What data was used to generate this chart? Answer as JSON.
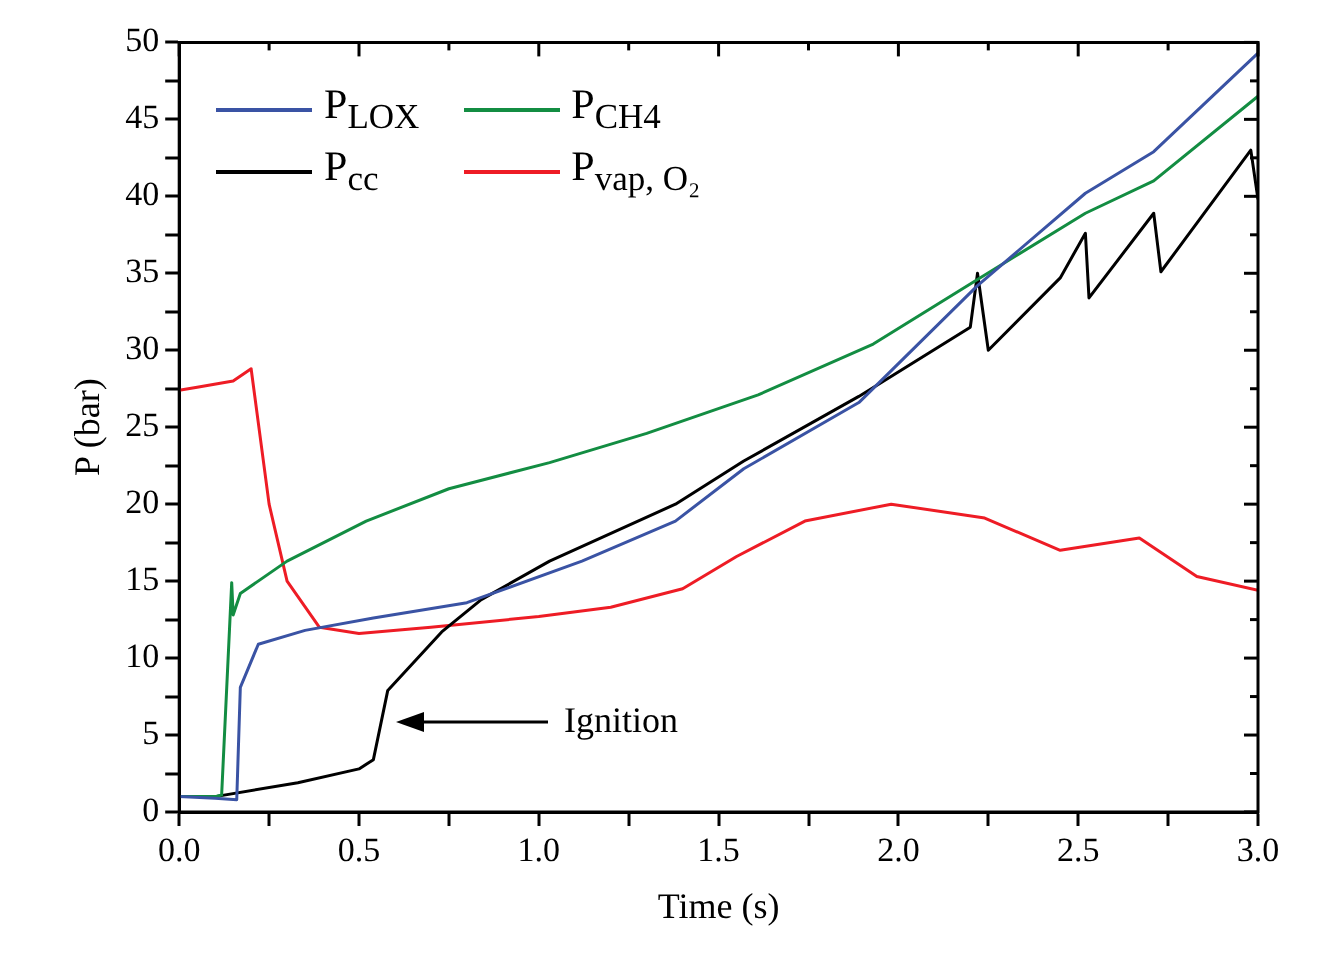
{
  "chart_data": {
    "type": "line",
    "xlabel": "Time (s)",
    "ylabel": "P (bar)",
    "xlim": [
      0,
      3
    ],
    "ylim": [
      0,
      50
    ],
    "xticks": [
      {
        "value": 0,
        "label": "0.0"
      },
      {
        "value": 0.25,
        "label": null
      },
      {
        "value": 0.5,
        "label": "0.5"
      },
      {
        "value": 0.75,
        "label": null
      },
      {
        "value": 1,
        "label": "1.0"
      },
      {
        "value": 1.25,
        "label": null
      },
      {
        "value": 1.5,
        "label": "1.5"
      },
      {
        "value": 1.75,
        "label": null
      },
      {
        "value": 2,
        "label": "2.0"
      },
      {
        "value": 2.25,
        "label": null
      },
      {
        "value": 2.5,
        "label": "2.5"
      },
      {
        "value": 2.75,
        "label": null
      },
      {
        "value": 3,
        "label": "3.0"
      }
    ],
    "yticks": [
      0,
      {
        "value": 2.5,
        "label": null
      },
      5,
      {
        "value": 7.5,
        "label": null
      },
      10,
      {
        "value": 12.5,
        "label": null
      },
      15,
      {
        "value": 17.5,
        "label": null
      },
      20,
      {
        "value": 22.5,
        "label": null
      },
      25,
      {
        "value": 27.5,
        "label": null
      },
      30,
      {
        "value": 32.5,
        "label": null
      },
      35,
      {
        "value": 37.5,
        "label": null
      },
      40,
      {
        "value": 42.5,
        "label": null
      },
      45,
      {
        "value": 47.5,
        "label": null
      },
      50
    ],
    "grid": false,
    "legend": "top left",
    "marker": "none",
    "line_style": "solid",
    "annotations": [
      "Ignition"
    ],
    "series": [
      {
        "name": "P$_{LOX}$",
        "color": "#3a53a4",
        "x": [
          0,
          0.1,
          0.16,
          0.17,
          0.22,
          0.35,
          0.54,
          0.8,
          1.12,
          1.38,
          1.57,
          1.89,
          2.22,
          2.52,
          2.71,
          3.0
        ],
        "values": [
          1.0,
          0.9,
          0.8,
          8.1,
          10.9,
          11.8,
          12.6,
          13.6,
          16.3,
          18.9,
          22.3,
          26.6,
          34.2,
          40.2,
          42.9,
          49.3
        ]
      },
      {
        "name": "P$_{CH4}$",
        "color": "#138d42",
        "x": [
          0,
          0.1,
          0.118,
          0.146,
          0.15,
          0.17,
          0.3,
          0.52,
          0.75,
          1.03,
          1.3,
          1.61,
          1.93,
          2.22,
          2.52,
          2.71,
          3.0
        ],
        "values": [
          1.0,
          1.0,
          1.1,
          14.9,
          12.8,
          14.2,
          16.3,
          18.9,
          21.0,
          22.7,
          24.6,
          27.1,
          30.4,
          34.6,
          38.9,
          41.0,
          46.5
        ]
      },
      {
        "name": "P$_{cc}$",
        "color": "#000000",
        "x": [
          0,
          0.1,
          0.33,
          0.5,
          0.54,
          0.58,
          0.73,
          0.84,
          1.03,
          1.38,
          1.57,
          1.89,
          2.2,
          2.22,
          2.25,
          2.45,
          2.52,
          2.53,
          2.71,
          2.73,
          2.98,
          3.0
        ],
        "values": [
          1.0,
          1.0,
          1.9,
          2.8,
          3.4,
          7.9,
          11.7,
          13.8,
          16.3,
          20.0,
          22.8,
          27.0,
          31.5,
          35.0,
          30.0,
          34.7,
          37.6,
          33.4,
          38.9,
          35.1,
          43.0,
          39.8
        ]
      },
      {
        "name": "P$_{vap, O₂}$",
        "color": "#ee1c25",
        "x": [
          0,
          0.05,
          0.15,
          0.2,
          0.25,
          0.3,
          0.39,
          0.5,
          0.7,
          1.0,
          1.2,
          1.4,
          1.55,
          1.74,
          1.98,
          2.24,
          2.45,
          2.67,
          2.83,
          3.0
        ],
        "values": [
          27.4,
          27.6,
          28.0,
          28.8,
          20.0,
          15.0,
          12.0,
          11.6,
          12.0,
          12.7,
          13.3,
          14.5,
          16.6,
          18.9,
          20.0,
          19.1,
          17.0,
          17.8,
          15.3,
          14.4
        ]
      }
    ]
  }
}
